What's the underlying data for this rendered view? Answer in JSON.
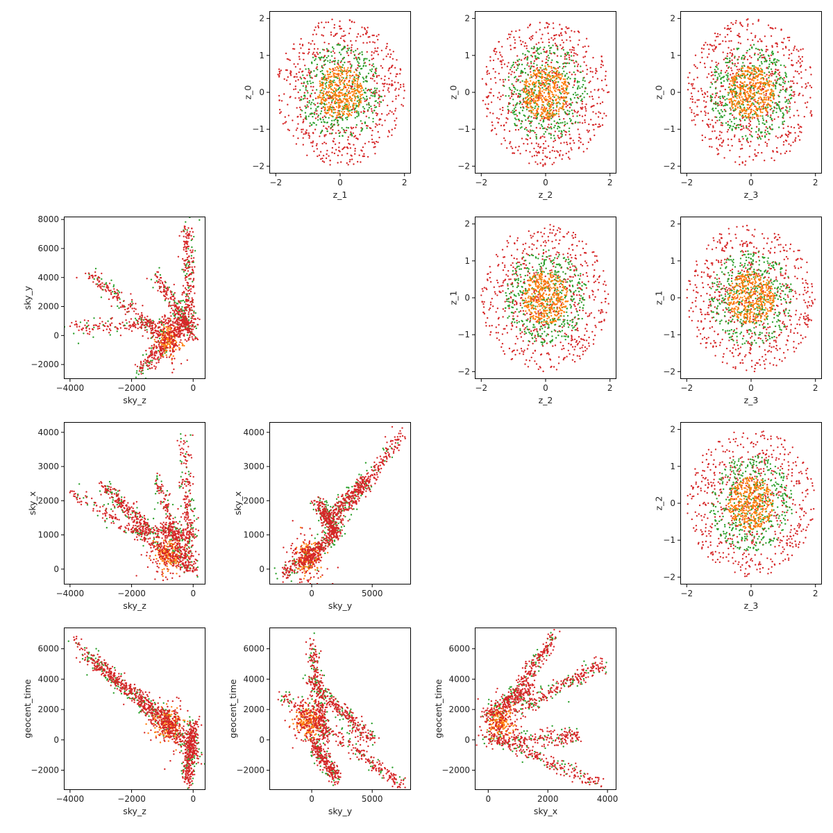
{
  "chart_data": [
    {
      "type": "scatter",
      "row": 0,
      "col": 1,
      "xlabel": "z_1",
      "ylabel": "z_0",
      "xlim": [
        -2.2,
        2.2
      ],
      "ylim": [
        -2.2,
        2.2
      ],
      "xticks": [
        -2,
        0,
        2
      ],
      "yticks": [
        -2,
        -1,
        0,
        1,
        2
      ],
      "cloud": "disk",
      "clusters": [
        [
          0,
          0
        ]
      ]
    },
    {
      "type": "scatter",
      "row": 0,
      "col": 2,
      "xlabel": "z_2",
      "ylabel": "z_0",
      "xlim": [
        -2.2,
        2.2
      ],
      "ylim": [
        -2.2,
        2.2
      ],
      "xticks": [
        -2,
        0,
        2
      ],
      "yticks": [
        -2,
        -1,
        0,
        1,
        2
      ],
      "cloud": "disk",
      "clusters": [
        [
          0,
          0
        ]
      ]
    },
    {
      "type": "scatter",
      "row": 0,
      "col": 3,
      "xlabel": "z_3",
      "ylabel": "z_0",
      "xlim": [
        -2.2,
        2.2
      ],
      "ylim": [
        -2.2,
        2.2
      ],
      "xticks": [
        -2,
        0,
        2
      ],
      "yticks": [
        -2,
        -1,
        0,
        1,
        2
      ],
      "cloud": "disk",
      "clusters": [
        [
          0,
          0
        ]
      ]
    },
    {
      "type": "scatter",
      "row": 1,
      "col": 0,
      "xlabel": "sky_z",
      "ylabel": "sky_y",
      "xlim": [
        -4200,
        400
      ],
      "ylim": [
        -3000,
        8200
      ],
      "xticks": [
        -4000,
        -2000,
        0
      ],
      "yticks": [
        -2000,
        0,
        2000,
        4000,
        6000,
        8000
      ],
      "cloud": "segments",
      "segments": [
        [
          [
            -4000,
            500
          ],
          [
            0,
            900
          ]
        ],
        [
          [
            -1200,
            4200
          ],
          [
            0,
            0
          ]
        ],
        [
          [
            -200,
            7600
          ],
          [
            -100,
            0
          ]
        ],
        [
          [
            -3500,
            4500
          ],
          [
            -1000,
            0
          ]
        ],
        [
          [
            -1800,
            -2500
          ],
          [
            -200,
            1000
          ]
        ]
      ],
      "clusters": [
        [
          -800,
          -300
        ]
      ]
    },
    {
      "type": "scatter",
      "row": 0,
      "col": 0,
      "xlabel": "",
      "ylabel": "",
      "hidden": true
    },
    {
      "type": "scatter",
      "row": 1,
      "col": 2,
      "xlabel": "z_2",
      "ylabel": "z_1",
      "xlim": [
        -2.2,
        2.2
      ],
      "ylim": [
        -2.2,
        2.2
      ],
      "xticks": [
        -2,
        0,
        2
      ],
      "yticks": [
        -2,
        -1,
        0,
        1,
        2
      ],
      "cloud": "disk",
      "clusters": [
        [
          0,
          0
        ]
      ]
    },
    {
      "type": "scatter",
      "row": 1,
      "col": 3,
      "xlabel": "z_3",
      "ylabel": "z_1",
      "xlim": [
        -2.2,
        2.2
      ],
      "ylim": [
        -2.2,
        2.2
      ],
      "xticks": [
        -2,
        0,
        2
      ],
      "yticks": [
        -2,
        -1,
        0,
        1,
        2
      ],
      "cloud": "disk",
      "clusters": [
        [
          0,
          0
        ]
      ]
    },
    {
      "type": "scatter",
      "row": 2,
      "col": 0,
      "xlabel": "sky_z",
      "ylabel": "sky_x",
      "xlim": [
        -4200,
        400
      ],
      "ylim": [
        -450,
        4300
      ],
      "xticks": [
        -4000,
        -2000,
        0
      ],
      "yticks": [
        0,
        1000,
        2000,
        3000,
        4000
      ],
      "cloud": "segments",
      "segments": [
        [
          [
            -4000,
            2300
          ],
          [
            0,
            0
          ]
        ],
        [
          [
            -1200,
            2700
          ],
          [
            -200,
            0
          ]
        ],
        [
          [
            -300,
            4000
          ],
          [
            -100,
            0
          ]
        ],
        [
          [
            -3000,
            2500
          ],
          [
            -1500,
            1200
          ]
        ],
        [
          [
            -2000,
            1200
          ],
          [
            0,
            1000
          ]
        ]
      ],
      "clusters": [
        [
          -800,
          400
        ]
      ]
    },
    {
      "type": "scatter",
      "row": 2,
      "col": 1,
      "xlabel": "sky_y",
      "ylabel": "sky_x",
      "xlim": [
        -3500,
        8200
      ],
      "ylim": [
        -450,
        4300
      ],
      "xticks": [
        0,
        5000
      ],
      "yticks": [
        0,
        1000,
        2000,
        3000,
        4000
      ],
      "cloud": "segments",
      "segments": [
        [
          [
            -500,
            0
          ],
          [
            7500,
            4000
          ]
        ],
        [
          [
            -2500,
            -200
          ],
          [
            2000,
            1000
          ]
        ],
        [
          [
            500,
            2000
          ],
          [
            2000,
            1000
          ]
        ],
        [
          [
            1500,
            1500
          ],
          [
            4500,
            2600
          ]
        ]
      ],
      "clusters": [
        [
          -300,
          300
        ]
      ]
    },
    {
      "type": "scatter",
      "row": 2,
      "col": 3,
      "xlabel": "z_3",
      "ylabel": "z_2",
      "xlim": [
        -2.2,
        2.2
      ],
      "ylim": [
        -2.2,
        2.2
      ],
      "xticks": [
        -2,
        0,
        2
      ],
      "yticks": [
        -2,
        -1,
        0,
        1,
        2
      ],
      "cloud": "disk",
      "clusters": [
        [
          0,
          0
        ]
      ]
    },
    {
      "type": "scatter",
      "row": 3,
      "col": 0,
      "xlabel": "sky_z",
      "ylabel": "geocent_time",
      "xlim": [
        -4200,
        400
      ],
      "ylim": [
        -3300,
        7400
      ],
      "xticks": [
        -4000,
        -2000,
        0
      ],
      "yticks": [
        -2000,
        0,
        2000,
        4000,
        6000
      ],
      "cloud": "segments",
      "segments": [
        [
          [
            -4000,
            6800
          ],
          [
            200,
            -1200
          ]
        ],
        [
          [
            -3500,
            5500
          ],
          [
            -500,
            800
          ]
        ],
        [
          [
            -200,
            -3000
          ],
          [
            0,
            1000
          ]
        ]
      ],
      "clusters": [
        [
          -800,
          1000
        ]
      ]
    },
    {
      "type": "scatter",
      "row": 3,
      "col": 1,
      "xlabel": "sky_y",
      "ylabel": "geocent_time",
      "xlim": [
        -3500,
        8200
      ],
      "ylim": [
        -3300,
        7400
      ],
      "xticks": [
        0,
        5000
      ],
      "yticks": [
        -2000,
        0,
        2000,
        4000,
        6000
      ],
      "cloud": "segments",
      "segments": [
        [
          [
            -2500,
            3000
          ],
          [
            7500,
            -3000
          ]
        ],
        [
          [
            0,
            6500
          ],
          [
            1000,
            0
          ]
        ],
        [
          [
            -200,
            4000
          ],
          [
            5000,
            0
          ]
        ],
        [
          [
            0,
            0
          ],
          [
            2000,
            -2500
          ]
        ]
      ],
      "clusters": [
        [
          -300,
          1200
        ]
      ]
    },
    {
      "type": "scatter",
      "row": 3,
      "col": 2,
      "xlabel": "sky_x",
      "ylabel": "geocent_time",
      "xlim": [
        -450,
        4300
      ],
      "ylim": [
        -3300,
        7400
      ],
      "xticks": [
        0,
        2000,
        4000
      ],
      "yticks": [
        -2000,
        0,
        2000,
        4000,
        6000
      ],
      "cloud": "segments",
      "segments": [
        [
          [
            -200,
            500
          ],
          [
            3800,
            -3000
          ]
        ],
        [
          [
            0,
            0
          ],
          [
            3000,
            200
          ]
        ],
        [
          [
            500,
            2000
          ],
          [
            2200,
            6800
          ]
        ],
        [
          [
            1000,
            2000
          ],
          [
            3800,
            5000
          ]
        ],
        [
          [
            -200,
            1500
          ],
          [
            1500,
            3500
          ]
        ]
      ],
      "clusters": [
        [
          400,
          1200
        ]
      ]
    }
  ],
  "series_colors": [
    "#d62728",
    "#2ca02c",
    "#ff7f0e"
  ]
}
